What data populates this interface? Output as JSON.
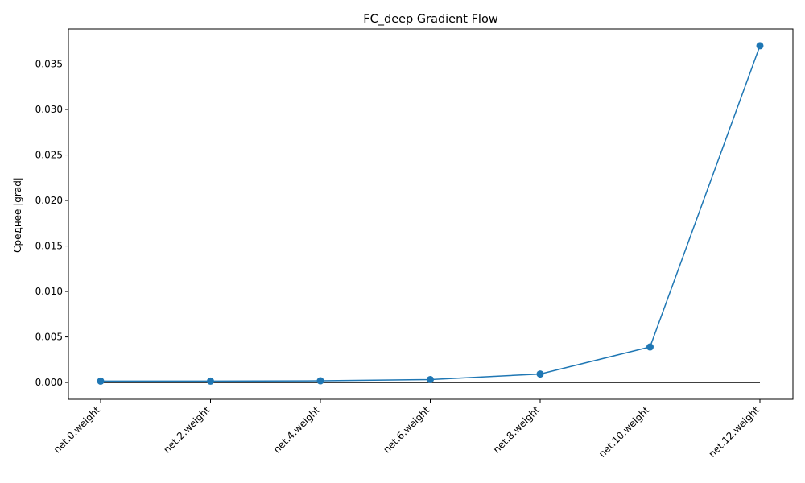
{
  "chart_data": {
    "type": "line",
    "title": "FC_deep Gradient Flow",
    "xlabel": "",
    "ylabel": "Среднее |grad|",
    "categories": [
      "net.0.weight",
      "net.2.weight",
      "net.4.weight",
      "net.6.weight",
      "net.8.weight",
      "net.10.weight",
      "net.12.weight"
    ],
    "series": [
      {
        "values": [
          0.00015,
          0.00015,
          0.00018,
          0.00032,
          0.00093,
          0.0039,
          0.037
        ],
        "color": "#1f77b4",
        "marker": "circle"
      }
    ],
    "reference_line": {
      "y": 0,
      "color": "#000000"
    },
    "ylim": [
      -0.00185,
      0.03885
    ],
    "yticks": [
      0.0,
      0.005,
      0.01,
      0.015,
      0.02,
      0.025,
      0.03,
      0.035
    ],
    "ytick_labels": [
      "0.000",
      "0.005",
      "0.010",
      "0.015",
      "0.020",
      "0.025",
      "0.030",
      "0.035"
    ],
    "grid": false,
    "legend": "none"
  }
}
